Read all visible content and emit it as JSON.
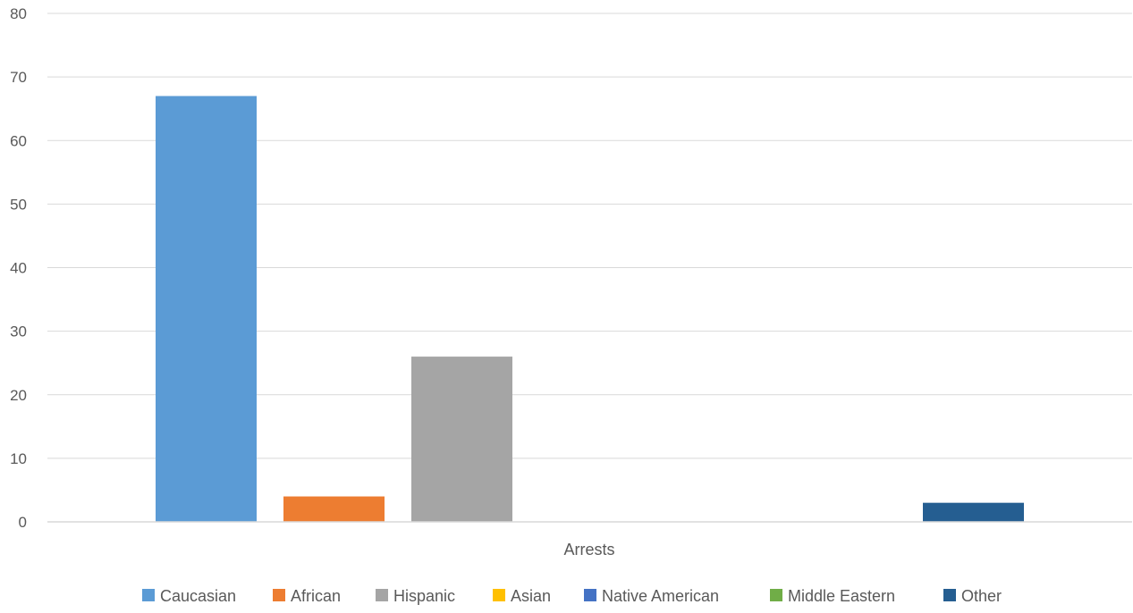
{
  "chart_data": {
    "type": "bar",
    "categories": [
      "Arrests"
    ],
    "series": [
      {
        "name": "Caucasian",
        "values": [
          67
        ],
        "color": "#5b9bd5"
      },
      {
        "name": "African",
        "values": [
          4
        ],
        "color": "#ed7d31"
      },
      {
        "name": "Hispanic",
        "values": [
          26
        ],
        "color": "#a5a5a5"
      },
      {
        "name": "Asian",
        "values": [
          0
        ],
        "color": "#ffc000"
      },
      {
        "name": "Native American",
        "values": [
          0
        ],
        "color": "#4472c4"
      },
      {
        "name": "Middle Eastern",
        "values": [
          0
        ],
        "color": "#70ad47"
      },
      {
        "name": "Other",
        "values": [
          3
        ],
        "color": "#255e91"
      }
    ],
    "ylim": [
      0,
      80
    ],
    "yticks": [
      0,
      10,
      20,
      30,
      40,
      50,
      60,
      70,
      80
    ],
    "grid": true,
    "legend_position": "bottom",
    "title": "",
    "xlabel": "",
    "ylabel": ""
  }
}
